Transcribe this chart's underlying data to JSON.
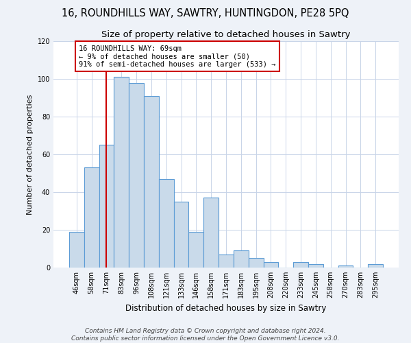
{
  "title": "16, ROUNDHILLS WAY, SAWTRY, HUNTINGDON, PE28 5PQ",
  "subtitle": "Size of property relative to detached houses in Sawtry",
  "xlabel": "Distribution of detached houses by size in Sawtry",
  "ylabel": "Number of detached properties",
  "bar_labels": [
    "46sqm",
    "58sqm",
    "71sqm",
    "83sqm",
    "96sqm",
    "108sqm",
    "121sqm",
    "133sqm",
    "146sqm",
    "158sqm",
    "171sqm",
    "183sqm",
    "195sqm",
    "208sqm",
    "220sqm",
    "233sqm",
    "245sqm",
    "258sqm",
    "270sqm",
    "283sqm",
    "295sqm"
  ],
  "bar_values": [
    19,
    53,
    65,
    101,
    98,
    91,
    47,
    35,
    19,
    37,
    7,
    9,
    5,
    3,
    0,
    3,
    2,
    0,
    1,
    0,
    2
  ],
  "bar_color": "#c9daea",
  "bar_edge_color": "#5b9bd5",
  "vline_x": 2,
  "vline_color": "#cc0000",
  "annotation_line1": "16 ROUNDHILLS WAY: 69sqm",
  "annotation_line2": "← 9% of detached houses are smaller (50)",
  "annotation_line3": "91% of semi-detached houses are larger (533) →",
  "annotation_box_color": "#ffffff",
  "annotation_box_edge": "#cc0000",
  "ylim": [
    0,
    120
  ],
  "yticks": [
    0,
    20,
    40,
    60,
    80,
    100,
    120
  ],
  "footer_line1": "Contains HM Land Registry data © Crown copyright and database right 2024.",
  "footer_line2": "Contains public sector information licensed under the Open Government Licence v3.0.",
  "bg_color": "#eef2f8",
  "plot_bg_color": "#ffffff",
  "grid_color": "#c8d4e8",
  "title_fontsize": 10.5,
  "subtitle_fontsize": 9.5,
  "xlabel_fontsize": 8.5,
  "ylabel_fontsize": 8,
  "tick_fontsize": 7,
  "annot_fontsize": 7.5,
  "footer_fontsize": 6.5
}
